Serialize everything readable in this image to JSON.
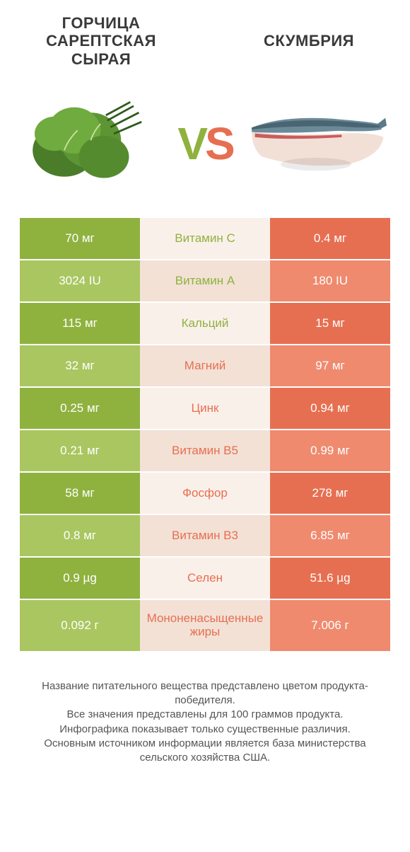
{
  "colors": {
    "green_dark": "#8fb23f",
    "green_light": "#a9c660",
    "orange_dark": "#e76f51",
    "orange_light": "#ef8a6f",
    "mid_bg_light": "#faf0ea",
    "mid_bg_dark": "#f3e1d6"
  },
  "header": {
    "left_title": "ГОРЧИЦА САРЕПТСКАЯ СЫРАЯ",
    "right_title": "СКУМБРИЯ",
    "vs_v": "V",
    "vs_s": "S"
  },
  "rows": [
    {
      "left": "70 мг",
      "mid": "Витамин C",
      "right": "0.4 мг",
      "winner": "left"
    },
    {
      "left": "3024 IU",
      "mid": "Витамин A",
      "right": "180 IU",
      "winner": "left"
    },
    {
      "left": "115 мг",
      "mid": "Кальций",
      "right": "15 мг",
      "winner": "left"
    },
    {
      "left": "32 мг",
      "mid": "Магний",
      "right": "97 мг",
      "winner": "right"
    },
    {
      "left": "0.25 мг",
      "mid": "Цинк",
      "right": "0.94 мг",
      "winner": "right"
    },
    {
      "left": "0.21 мг",
      "mid": "Витамин B5",
      "right": "0.99 мг",
      "winner": "right"
    },
    {
      "left": "58 мг",
      "mid": "Фосфор",
      "right": "278 мг",
      "winner": "right"
    },
    {
      "left": "0.8 мг",
      "mid": "Витамин B3",
      "right": "6.85 мг",
      "winner": "right"
    },
    {
      "left": "0.9 µg",
      "mid": "Селен",
      "right": "51.6 µg",
      "winner": "right"
    },
    {
      "left": "0.092 г",
      "mid": "Мононенасыщенные жиры",
      "right": "7.006 г",
      "winner": "right",
      "tall": true
    }
  ],
  "footnote": {
    "l1": "Название питательного вещества представлено цветом продукта-победителя.",
    "l2": "Все значения представлены для 100 граммов продукта.",
    "l3": "Инфографика показывает только существенные различия.",
    "l4": "Основным источником информации является база министерства сельского хозяйства США."
  }
}
